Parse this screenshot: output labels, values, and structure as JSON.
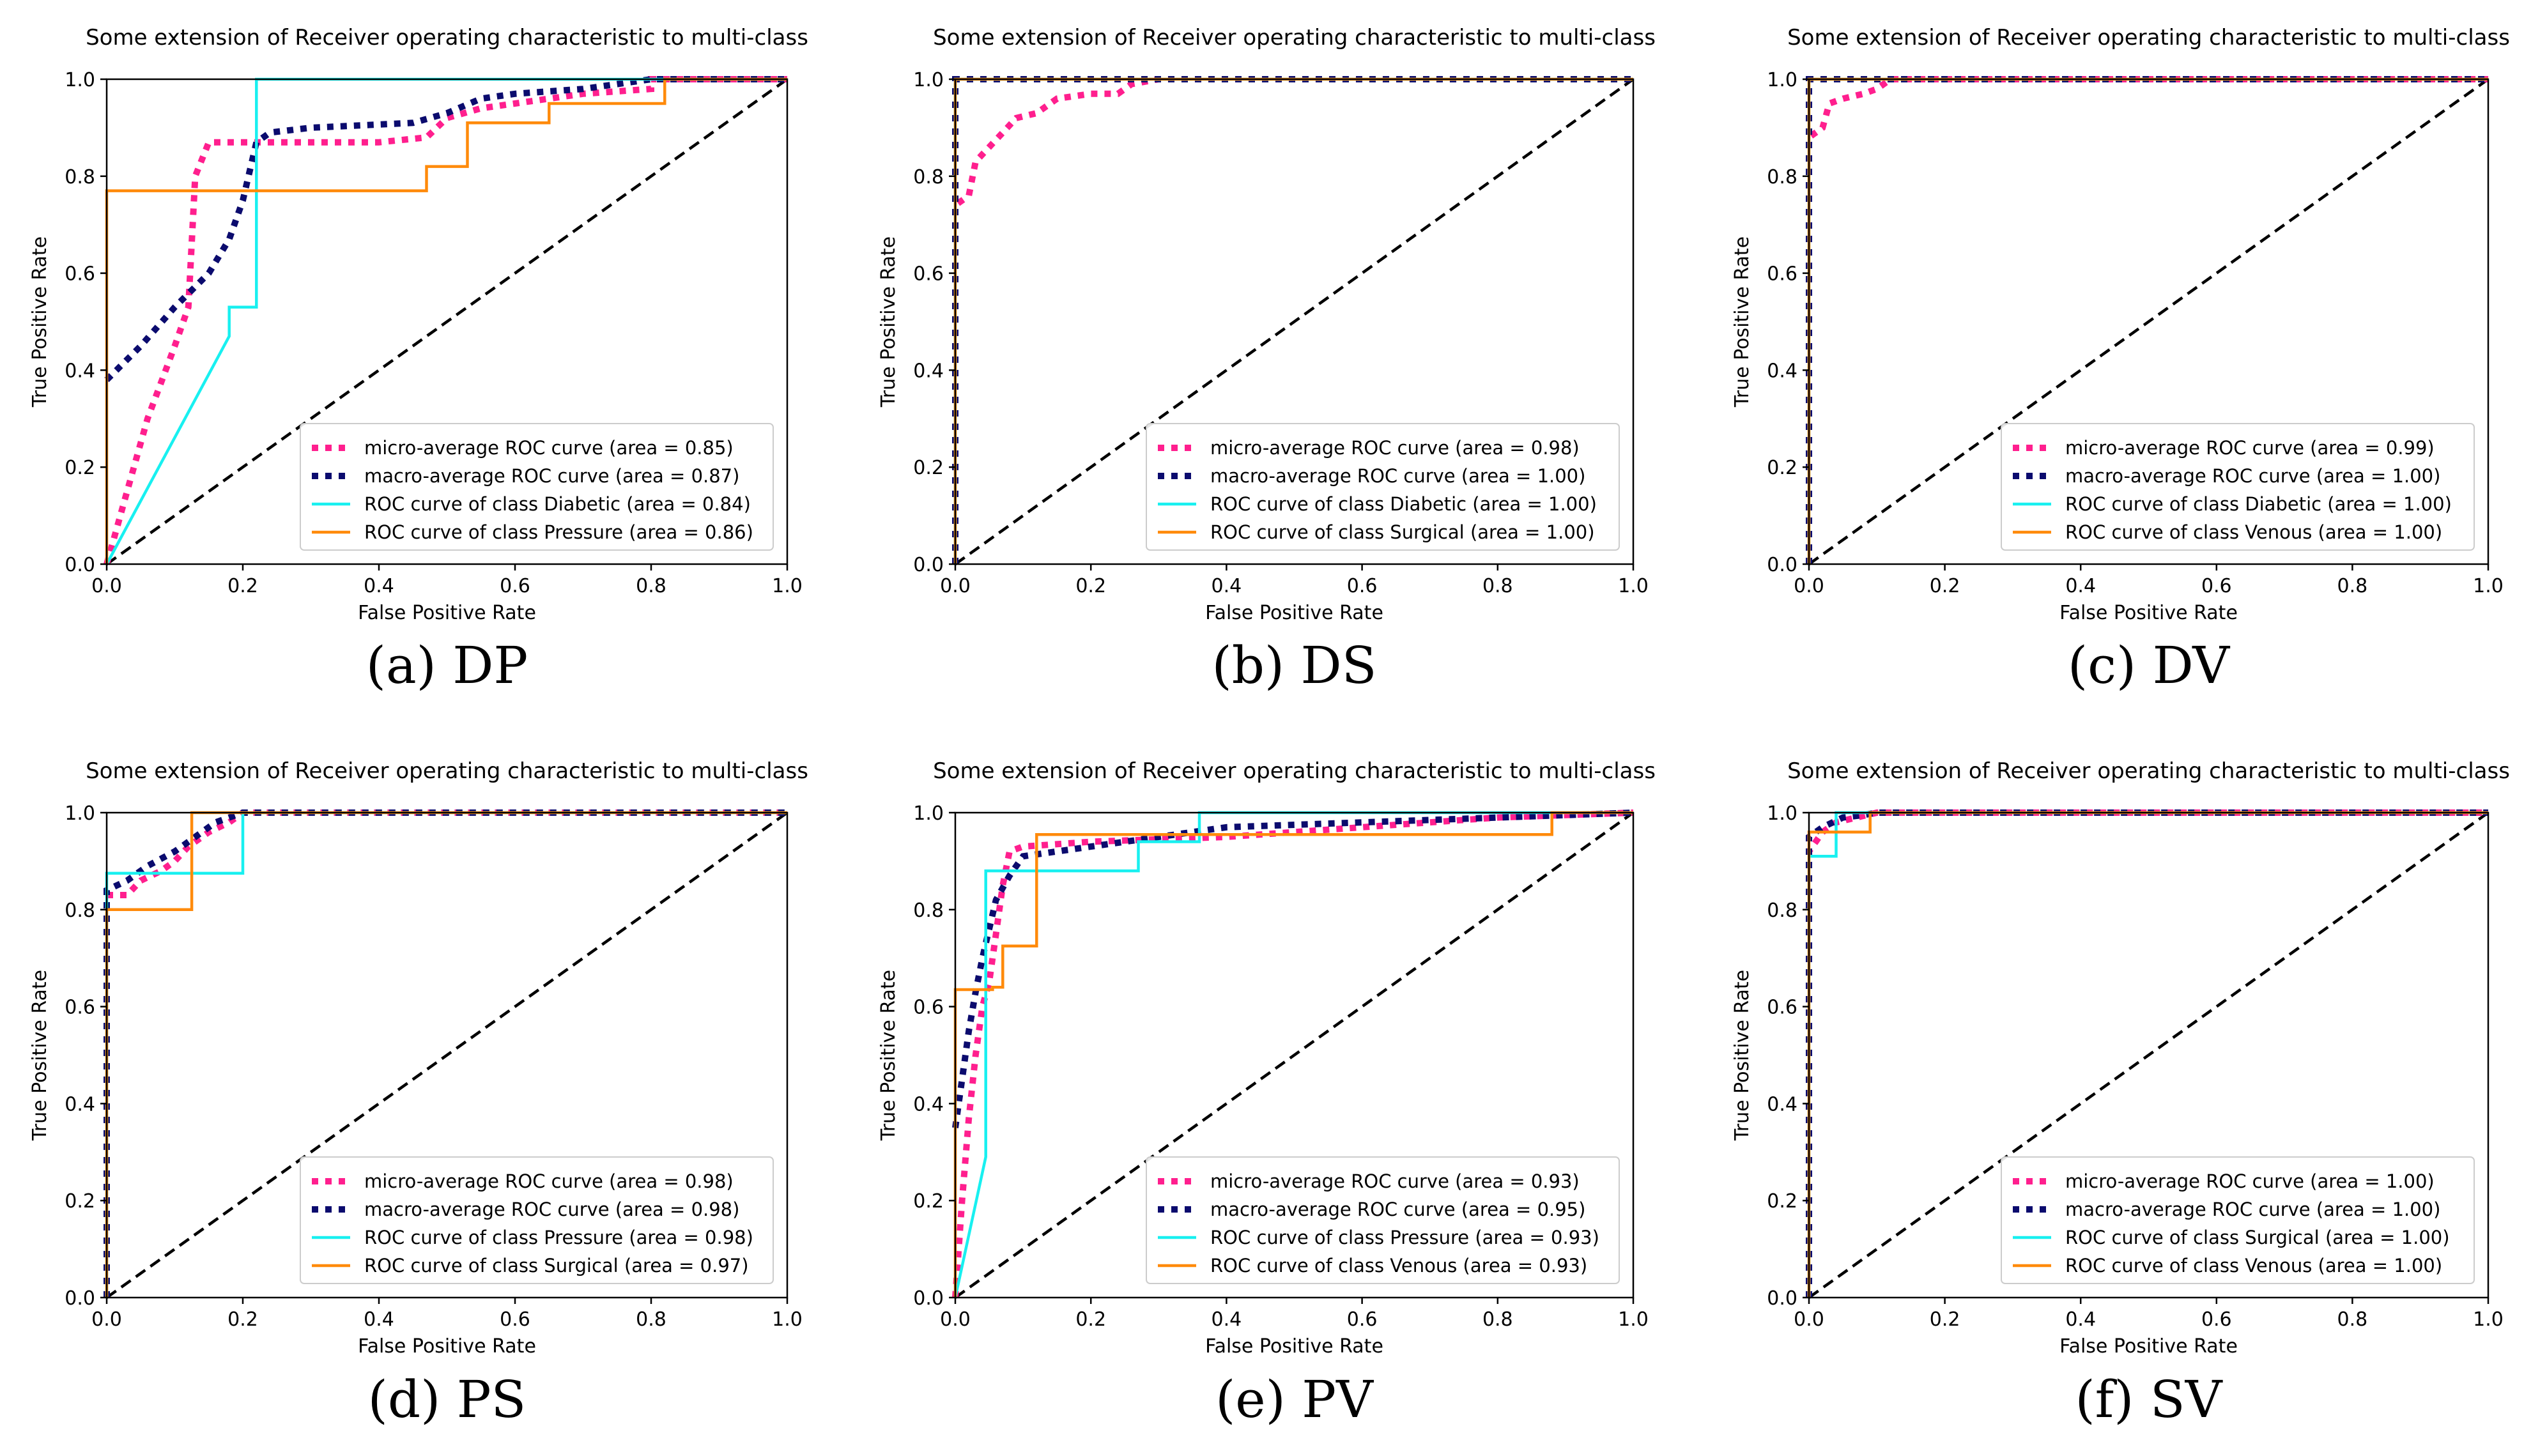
{
  "figure": {
    "colors": {
      "micro": "#ff1f8e",
      "macro": "#0b0b6e",
      "cyan": "#18f0f0",
      "orange": "#ff8a0a",
      "diagonal": "#000000"
    }
  },
  "chart_data": [
    {
      "type": "line",
      "title": "Some extension of Receiver operating characteristic to multi-class",
      "xlabel": "False Positive Rate",
      "ylabel": "True Positive Rate",
      "xlim": [
        0,
        1.0
      ],
      "ylim": [
        0,
        1.0
      ],
      "xticks": [
        "0.0",
        "0.2",
        "0.4",
        "0.6",
        "0.8",
        "1.0"
      ],
      "yticks": [
        "0.0",
        "0.2",
        "0.4",
        "0.6",
        "0.8",
        "1.0"
      ],
      "caption": "(a) DP",
      "legend_position": "lower-right",
      "series": [
        {
          "name": "micro-average ROC curve (area = 0.85)",
          "style": "micro",
          "x": [
            0,
            0.01,
            0.03,
            0.06,
            0.1,
            0.12,
            0.13,
            0.15,
            0.2,
            0.22,
            0.4,
            0.47,
            0.5,
            0.55,
            0.6,
            0.7,
            0.8,
            0.8,
            1.0
          ],
          "y": [
            0,
            0.05,
            0.15,
            0.3,
            0.45,
            0.53,
            0.8,
            0.87,
            0.87,
            0.87,
            0.87,
            0.88,
            0.92,
            0.94,
            0.95,
            0.97,
            0.98,
            1.0,
            1.0
          ]
        },
        {
          "name": "macro-average ROC curve (area = 0.87)",
          "style": "macro",
          "x": [
            0,
            0.05,
            0.1,
            0.15,
            0.18,
            0.2,
            0.22,
            0.24,
            0.3,
            0.45,
            0.5,
            0.55,
            0.6,
            0.7,
            0.8,
            1.0
          ],
          "y": [
            0.38,
            0.45,
            0.53,
            0.6,
            0.67,
            0.75,
            0.87,
            0.89,
            0.9,
            0.91,
            0.93,
            0.96,
            0.97,
            0.98,
            1.0,
            1.0
          ]
        },
        {
          "name": "ROC curve of class Diabetic (area = 0.84)",
          "style": "cyan",
          "x": [
            0,
            0.18,
            0.18,
            0.22,
            0.22,
            0.8,
            0.8,
            1.0
          ],
          "y": [
            0,
            0.47,
            0.53,
            0.53,
            1.0,
            1.0,
            1.0,
            1.0
          ]
        },
        {
          "name": "ROC curve of class Pressure (area = 0.86)",
          "style": "orange",
          "x": [
            0,
            0,
            0.47,
            0.47,
            0.53,
            0.53,
            0.65,
            0.65,
            0.82,
            0.82,
            1.0
          ],
          "y": [
            0,
            0.77,
            0.77,
            0.82,
            0.82,
            0.91,
            0.91,
            0.95,
            0.95,
            1.0,
            1.0
          ]
        }
      ]
    },
    {
      "type": "line",
      "title": "Some extension of Receiver operating characteristic to multi-class",
      "xlabel": "False Positive Rate",
      "ylabel": "True Positive Rate",
      "xlim": [
        0,
        1.0
      ],
      "ylim": [
        0,
        1.0
      ],
      "xticks": [
        "0.0",
        "0.2",
        "0.4",
        "0.6",
        "0.8",
        "1.0"
      ],
      "yticks": [
        "0.0",
        "0.2",
        "0.4",
        "0.6",
        "0.8",
        "1.0"
      ],
      "caption": "(b) DS",
      "legend_position": "lower-right",
      "series": [
        {
          "name": "micro-average ROC curve (area = 0.98)",
          "style": "micro",
          "x": [
            0,
            0,
            0.02,
            0.03,
            0.05,
            0.07,
            0.09,
            0.12,
            0.15,
            0.2,
            0.24,
            0.26,
            0.3,
            1.0
          ],
          "y": [
            0,
            0.74,
            0.76,
            0.83,
            0.86,
            0.89,
            0.92,
            0.93,
            0.96,
            0.97,
            0.97,
            0.99,
            1.0,
            1.0
          ]
        },
        {
          "name": "macro-average ROC curve (area = 1.00)",
          "style": "macro",
          "x": [
            0,
            0,
            1.0
          ],
          "y": [
            0,
            1.0,
            1.0
          ]
        },
        {
          "name": "ROC curve of class Diabetic (area = 1.00)",
          "style": "cyan",
          "x": [
            0,
            0,
            1.0
          ],
          "y": [
            0,
            1.0,
            1.0
          ]
        },
        {
          "name": "ROC curve of class Surgical (area = 1.00)",
          "style": "orange",
          "x": [
            0,
            0,
            1.0
          ],
          "y": [
            0,
            1.0,
            1.0
          ]
        }
      ]
    },
    {
      "type": "line",
      "title": "Some extension of Receiver operating characteristic to multi-class",
      "xlabel": "False Positive Rate",
      "ylabel": "True Positive Rate",
      "xlim": [
        0,
        1.0
      ],
      "ylim": [
        0,
        1.0
      ],
      "xticks": [
        "0.0",
        "0.2",
        "0.4",
        "0.6",
        "0.8",
        "1.0"
      ],
      "yticks": [
        "0.0",
        "0.2",
        "0.4",
        "0.6",
        "0.8",
        "1.0"
      ],
      "caption": "(c) DV",
      "legend_position": "lower-right",
      "series": [
        {
          "name": "micro-average ROC curve (area = 0.99)",
          "style": "micro",
          "x": [
            0,
            0,
            0.02,
            0.03,
            0.05,
            0.08,
            0.1,
            0.12,
            1.0
          ],
          "y": [
            0,
            0.88,
            0.9,
            0.95,
            0.96,
            0.97,
            0.98,
            1.0,
            1.0
          ]
        },
        {
          "name": "macro-average ROC curve (area = 1.00)",
          "style": "macro",
          "x": [
            0,
            0,
            1.0
          ],
          "y": [
            0,
            1.0,
            1.0
          ]
        },
        {
          "name": "ROC curve of class Diabetic (area = 1.00)",
          "style": "cyan",
          "x": [
            0,
            0,
            1.0
          ],
          "y": [
            0,
            1.0,
            1.0
          ]
        },
        {
          "name": "ROC curve of class Venous (area = 1.00)",
          "style": "orange",
          "x": [
            0,
            0,
            1.0
          ],
          "y": [
            0,
            1.0,
            1.0
          ]
        }
      ]
    },
    {
      "type": "line",
      "title": "Some extension of Receiver operating characteristic to multi-class",
      "xlabel": "False Positive Rate",
      "ylabel": "True Positive Rate",
      "xlim": [
        0,
        1.0
      ],
      "ylim": [
        0,
        1.0
      ],
      "xticks": [
        "0.0",
        "0.2",
        "0.4",
        "0.6",
        "0.8",
        "1.0"
      ],
      "yticks": [
        "0.0",
        "0.2",
        "0.4",
        "0.6",
        "0.8",
        "1.0"
      ],
      "caption": "(d) PS",
      "legend_position": "lower-right",
      "series": [
        {
          "name": "micro-average ROC curve (area = 0.98)",
          "style": "micro",
          "x": [
            0,
            0,
            0.03,
            0.05,
            0.08,
            0.1,
            0.12,
            0.15,
            0.18,
            0.2,
            1.0
          ],
          "y": [
            0,
            0.83,
            0.83,
            0.86,
            0.88,
            0.9,
            0.93,
            0.96,
            0.98,
            1.0,
            1.0
          ]
        },
        {
          "name": "macro-average ROC curve (area = 0.98)",
          "style": "macro",
          "x": [
            0,
            0,
            0.03,
            0.06,
            0.1,
            0.13,
            0.16,
            0.2,
            1.0
          ],
          "y": [
            0,
            0.84,
            0.86,
            0.89,
            0.92,
            0.95,
            0.98,
            1.0,
            1.0
          ]
        },
        {
          "name": "ROC curve of class Pressure (area = 0.98)",
          "style": "cyan",
          "x": [
            0,
            0,
            0.2,
            0.2,
            1.0
          ],
          "y": [
            0,
            0.875,
            0.875,
            1.0,
            1.0
          ]
        },
        {
          "name": "ROC curve of class Surgical (area = 0.97)",
          "style": "orange",
          "x": [
            0,
            0,
            0.125,
            0.125,
            1.0
          ],
          "y": [
            0,
            0.8,
            0.8,
            1.0,
            1.0
          ]
        }
      ]
    },
    {
      "type": "line",
      "title": "Some extension of Receiver operating characteristic to multi-class",
      "xlabel": "False Positive Rate",
      "ylabel": "True Positive Rate",
      "xlim": [
        0,
        1.0
      ],
      "ylim": [
        0,
        1.0
      ],
      "xticks": [
        "0.0",
        "0.2",
        "0.4",
        "0.6",
        "0.8",
        "1.0"
      ],
      "yticks": [
        "0.0",
        "0.2",
        "0.4",
        "0.6",
        "0.8",
        "1.0"
      ],
      "caption": "(e) PV",
      "legend_position": "lower-right",
      "series": [
        {
          "name": "micro-average ROC curve (area = 0.93)",
          "style": "micro",
          "x": [
            0,
            0.01,
            0.02,
            0.03,
            0.04,
            0.05,
            0.06,
            0.07,
            0.08,
            0.1,
            0.2,
            0.4,
            0.6,
            0.8,
            1.0
          ],
          "y": [
            0,
            0.2,
            0.37,
            0.5,
            0.6,
            0.65,
            0.75,
            0.85,
            0.92,
            0.93,
            0.94,
            0.95,
            0.97,
            0.99,
            1.0
          ]
        },
        {
          "name": "macro-average ROC curve (area = 0.95)",
          "style": "macro",
          "x": [
            0,
            0.01,
            0.02,
            0.03,
            0.04,
            0.05,
            0.06,
            0.08,
            0.1,
            0.2,
            0.3,
            0.4,
            0.6,
            0.8,
            1.0
          ],
          "y": [
            0.35,
            0.45,
            0.55,
            0.63,
            0.7,
            0.76,
            0.82,
            0.87,
            0.91,
            0.93,
            0.95,
            0.97,
            0.98,
            0.99,
            1.0
          ]
        },
        {
          "name": "ROC curve of class Pressure (area = 0.93)",
          "style": "cyan",
          "x": [
            0,
            0.045,
            0.045,
            0.045,
            0.27,
            0.27,
            0.36,
            0.36,
            1.0
          ],
          "y": [
            0,
            0.29,
            0.3,
            0.88,
            0.88,
            0.94,
            0.94,
            1.0,
            1.0
          ]
        },
        {
          "name": "ROC curve of class Venous (area = 0.93)",
          "style": "orange",
          "x": [
            0,
            0,
            0.055,
            0.055,
            0.07,
            0.07,
            0.12,
            0.12,
            0.36,
            0.36,
            0.88,
            0.88,
            1.0
          ],
          "y": [
            0,
            0.635,
            0.635,
            0.64,
            0.64,
            0.725,
            0.725,
            0.955,
            0.955,
            0.955,
            0.955,
            1.0,
            1.0
          ]
        }
      ]
    },
    {
      "type": "line",
      "title": "Some extension of Receiver operating characteristic to multi-class",
      "xlabel": "False Positive Rate",
      "ylabel": "True Positive Rate",
      "xlim": [
        0,
        1.0
      ],
      "ylim": [
        0,
        1.0
      ],
      "xticks": [
        "0.0",
        "0.2",
        "0.4",
        "0.6",
        "0.8",
        "1.0"
      ],
      "yticks": [
        "0.0",
        "0.2",
        "0.4",
        "0.6",
        "0.8",
        "1.0"
      ],
      "caption": "(f) SV",
      "legend_position": "lower-right",
      "series": [
        {
          "name": "micro-average ROC curve (area = 1.00)",
          "style": "micro",
          "x": [
            0,
            0,
            0.02,
            0.04,
            0.07,
            0.1,
            1.0
          ],
          "y": [
            0,
            0.92,
            0.96,
            0.98,
            0.99,
            1.0,
            1.0
          ]
        },
        {
          "name": "macro-average ROC curve (area = 1.00)",
          "style": "macro",
          "x": [
            0,
            0,
            0.02,
            0.05,
            0.08,
            0.1,
            1.0
          ],
          "y": [
            0,
            0.95,
            0.97,
            0.99,
            0.995,
            1.0,
            1.0
          ]
        },
        {
          "name": "ROC curve of class Surgical (area = 1.00)",
          "style": "cyan",
          "x": [
            0,
            0,
            0.04,
            0.04,
            1.0
          ],
          "y": [
            0,
            0.91,
            0.91,
            1.0,
            1.0
          ]
        },
        {
          "name": "ROC curve of class Venous (area = 1.00)",
          "style": "orange",
          "x": [
            0,
            0,
            0.09,
            0.09,
            1.0
          ],
          "y": [
            0,
            0.96,
            0.96,
            1.0,
            1.0
          ]
        }
      ]
    }
  ]
}
